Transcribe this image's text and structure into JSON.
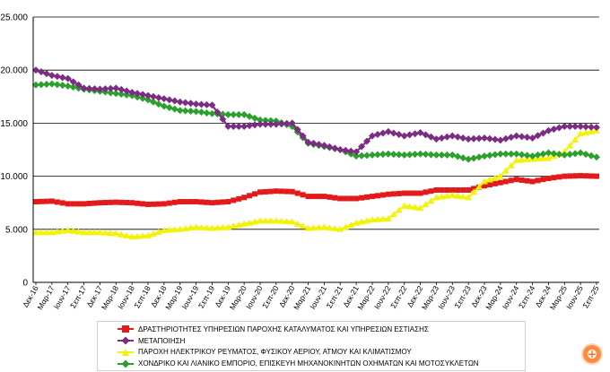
{
  "chart_data": {
    "type": "line",
    "title": "",
    "xlabel": "",
    "ylabel": "",
    "ylim": [
      0,
      25000
    ],
    "y_ticks": [
      "0",
      "5.000",
      "10.000",
      "15.000",
      "20.000",
      "25.000"
    ],
    "y_tick_values": [
      0,
      5000,
      10000,
      15000,
      20000,
      25000
    ],
    "x_tick_labels": [
      "Δεκ-16",
      "Μαρ-17",
      "Ιουν-17",
      "Σεπ-17",
      "Δεκ-17",
      "Μαρ-18",
      "Ιουν-18",
      "Σεπ-18",
      "Δεκ-18",
      "Μαρ-19",
      "Ιουν-19",
      "Σεπ-19",
      "Δεκ-19",
      "Μαρ-20",
      "Ιουν-20",
      "Σεπ-20",
      "Δεκ-20",
      "Μαρ-21",
      "Ιουν-21",
      "Σεπ-21",
      "Δεκ-21",
      "Μαρ-22",
      "Ιουν-22",
      "Σεπ-22",
      "Δεκ-22",
      "Μαρ-23",
      "Ιουν-23",
      "Σεπ-23",
      "Δεκ-23",
      "Μαρ-24",
      "Ιουν-24",
      "Σεπ-24",
      "Δεκ-24",
      "Μαρ-25",
      "Ιουν-25",
      "Σεπ-25"
    ],
    "grid": true,
    "legend_placement": "bottom",
    "series": [
      {
        "name": "ΔΡΑΣΤΗΡΙΟΤΗΤΕΣ ΥΠΗΡΕΣΙΩΝ ΠΑΡΟΧΗΣ ΚΑΤΑΛΥΜΑΤΟΣ ΚΑΙ ΥΠΗΡΕΣΙΩΝ ΕΣΤΙΑΣΗΣ",
        "color": "#e31a1c",
        "marker": "square",
        "values": [
          7600,
          7650,
          7400,
          7400,
          7500,
          7550,
          7500,
          7350,
          7400,
          7600,
          7600,
          7500,
          7600,
          8000,
          8500,
          8600,
          8550,
          8100,
          8100,
          7900,
          7900,
          8100,
          8300,
          8400,
          8400,
          8700,
          8700,
          8700,
          9100,
          9400,
          9700,
          9500,
          9800,
          10000,
          10050,
          10000
        ]
      },
      {
        "name": "ΜΕΤΑΠΟΙΗΣΗ",
        "color": "#7b2d83",
        "marker": "diamond",
        "values": [
          20000,
          19500,
          19200,
          18300,
          18200,
          18300,
          17900,
          17600,
          17300,
          17000,
          16800,
          16700,
          14700,
          14700,
          14900,
          14900,
          15000,
          13200,
          12900,
          12500,
          12300,
          13800,
          14200,
          13800,
          14100,
          13500,
          13800,
          13500,
          13600,
          13400,
          13800,
          13600,
          14300,
          14700,
          14700,
          14600
        ]
      },
      {
        "name": "ΠΑΡΟΧΗ ΗΛΕΚΤΡΙΚΟΥ ΡΕΥΜΑΤΟΣ, ΦΥΣΙΚΟΥ ΑΕΡΙΟΥ, ΑΤΜΟΥ ΚΑΙ ΚΛΙΜΑΤΙΣΜΟΥ",
        "color": "#f2f20a",
        "marker": "triangle",
        "values": [
          4700,
          4700,
          4900,
          4700,
          4700,
          4600,
          4300,
          4400,
          4900,
          5000,
          5200,
          5100,
          5200,
          5500,
          5800,
          5800,
          5700,
          5100,
          5200,
          5000,
          5600,
          5900,
          6000,
          7200,
          7000,
          8000,
          8200,
          8000,
          9500,
          10000,
          11500,
          11600,
          11700,
          12300,
          14000,
          14300
        ]
      },
      {
        "name": "ΧΟΝΔΡΙΚΟ ΚΑΙ ΛΙΑΝΙΚΟ ΕΜΠΟΡΙΟ, ΕΠΙΣΚΕΥΗ ΜΗΧΑΝΟΚΙΝΗΤΩΝ ΟΧΗΜΑΤΩΝ ΚΑΙ ΜΟΤΟΣΥΚΛΕΤΩΝ",
        "color": "#2ca02c",
        "marker": "diamond",
        "values": [
          18600,
          18700,
          18500,
          18200,
          18000,
          17800,
          17600,
          17200,
          16600,
          16200,
          16100,
          15900,
          15800,
          15800,
          15300,
          15200,
          14700,
          13100,
          12800,
          12500,
          11900,
          12000,
          12100,
          12000,
          12100,
          12000,
          12000,
          11600,
          11900,
          12100,
          12100,
          11900,
          12200,
          12000,
          12200,
          11800
        ]
      }
    ]
  },
  "logo": {
    "name": "capital.gr logo"
  }
}
